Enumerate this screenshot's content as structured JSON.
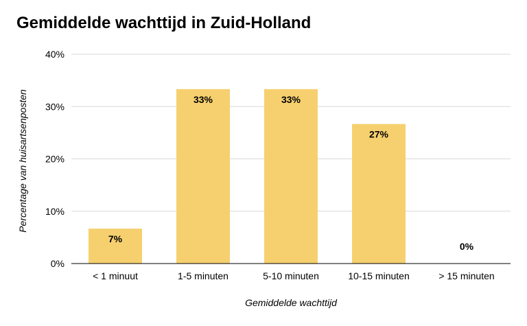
{
  "chart_data": {
    "type": "bar",
    "title": "Gemiddelde wachttijd in Zuid-Holland",
    "xlabel": "Gemiddelde wachttijd",
    "ylabel": "Percentage van huisartsenposten",
    "categories": [
      "< 1 minuut",
      "1-5 minuten",
      "5-10 minuten",
      "10-15 minuten",
      "> 15 minuten"
    ],
    "values": [
      6.67,
      33.33,
      33.33,
      26.67,
      0
    ],
    "data_labels": [
      "7%",
      "33%",
      "33%",
      "27%",
      "0%"
    ],
    "yticks": [
      0,
      10,
      20,
      30,
      40
    ],
    "ytick_labels": [
      "0%",
      "10%",
      "20%",
      "30%",
      "40%"
    ],
    "ylim": [
      0,
      40
    ],
    "grid": true,
    "legend": "none",
    "bar_color": "#f6d06f",
    "grid_color": "#d9d9d9",
    "axis_color": "#000000"
  }
}
